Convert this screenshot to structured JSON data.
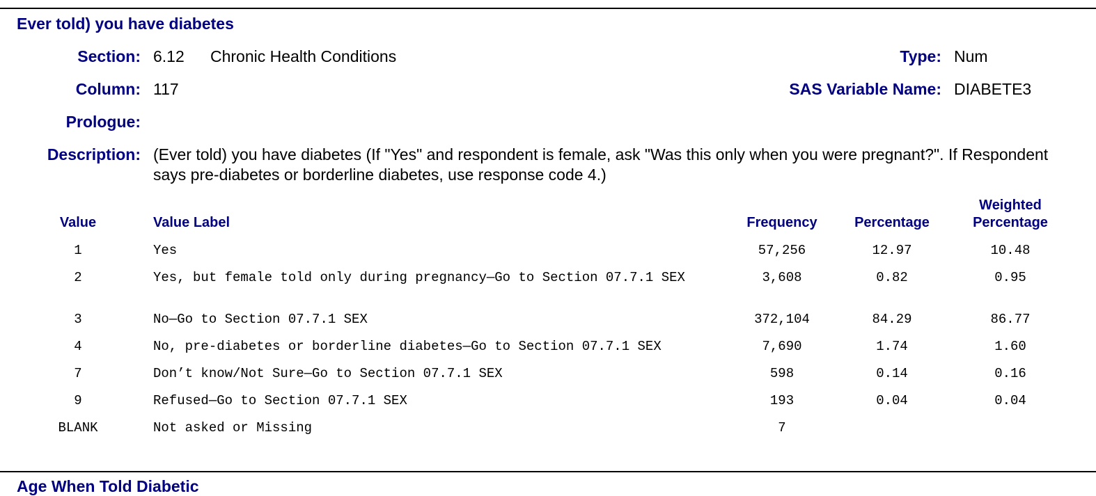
{
  "title": "Ever told) you have diabetes",
  "meta": {
    "section_label": "Section:",
    "section_number": "6.12",
    "section_name": "Chronic Health Conditions",
    "type_label": "Type:",
    "type_value": "Num",
    "column_label": "Column:",
    "column_value": "117",
    "sas_label": "SAS Variable Name:",
    "sas_value": "DIABETE3",
    "prologue_label": "Prologue:",
    "description_label": "Description:",
    "description_text": "(Ever told) you have diabetes   (If \"Yes\" and respondent is female, ask \"Was this only when you were pregnant?\". If Respondent says pre-diabetes or borderline diabetes, use response code 4.)"
  },
  "table": {
    "headers": {
      "value": "Value",
      "value_label": "Value Label",
      "frequency": "Frequency",
      "percentage": "Percentage",
      "weighted_line1": "Weighted",
      "weighted_line2": "Percentage"
    },
    "rows": [
      {
        "value": "1",
        "label": "Yes",
        "frequency": "57,256",
        "percentage": "12.97",
        "weighted": "10.48"
      },
      {
        "value": "2",
        "label": "Yes, but female told only during pregnancy—Go to Section 07.7.1 SEX",
        "frequency": "3,608",
        "percentage": "0.82",
        "weighted": "0.95"
      },
      {
        "value": "3",
        "label": "No—Go to Section 07.7.1 SEX",
        "frequency": "372,104",
        "percentage": "84.29",
        "weighted": "86.77"
      },
      {
        "value": "4",
        "label": "No, pre-diabetes or borderline diabetes—Go to Section 07.7.1 SEX",
        "frequency": "7,690",
        "percentage": "1.74",
        "weighted": "1.60"
      },
      {
        "value": "7",
        "label": "Don’t know/Not Sure—Go to Section 07.7.1 SEX",
        "frequency": "598",
        "percentage": "0.14",
        "weighted": "0.16"
      },
      {
        "value": "9",
        "label": "Refused—Go to Section 07.7.1 SEX",
        "frequency": "193",
        "percentage": "0.04",
        "weighted": "0.04"
      },
      {
        "value": "BLANK",
        "label": "Not asked or Missing",
        "frequency": "7",
        "percentage": "",
        "weighted": ""
      }
    ]
  },
  "next_title": "Age When Told Diabetic"
}
